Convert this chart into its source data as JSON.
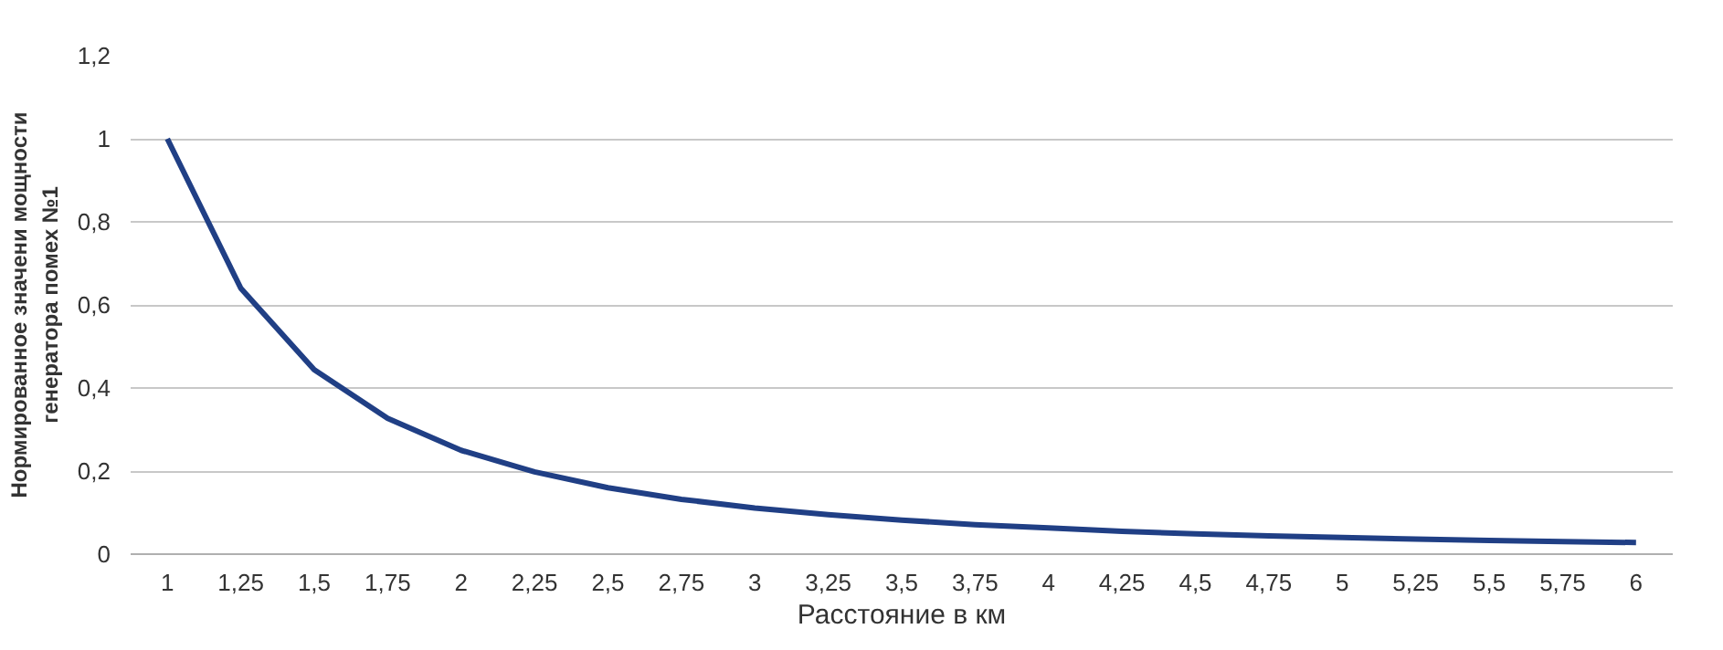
{
  "chart_data": {
    "type": "line",
    "xlabel": "Расстояние в км",
    "ylabel": "Нормированное значени мощности\nгенератора помех №1",
    "categories": [
      "1",
      "1,25",
      "1,5",
      "1,75",
      "2",
      "2,25",
      "2,5",
      "2,75",
      "3",
      "3,25",
      "3,5",
      "3,75",
      "4",
      "4,25",
      "4,5",
      "4,75",
      "5",
      "5,25",
      "5,5",
      "5,75",
      "6"
    ],
    "series": [
      {
        "color": "#203f85",
        "values": [
          1.0,
          0.64,
          0.444,
          0.327,
          0.25,
          0.198,
          0.16,
          0.132,
          0.111,
          0.095,
          0.082,
          0.071,
          0.063,
          0.055,
          0.049,
          0.044,
          0.04,
          0.036,
          0.033,
          0.03,
          0.028
        ]
      }
    ],
    "ylim": [
      0,
      1.2
    ],
    "yticks": [
      0,
      {
        "value": 0.2,
        "label": "0,2"
      },
      {
        "value": 0.4,
        "label": "0,4"
      },
      {
        "value": 0.6,
        "label": "0,6"
      },
      {
        "value": 0.8,
        "label": "0,8"
      },
      1,
      {
        "value": 1.2,
        "label": "1,2"
      }
    ],
    "grid": "y",
    "marker": "none",
    "line_style": "solid"
  }
}
